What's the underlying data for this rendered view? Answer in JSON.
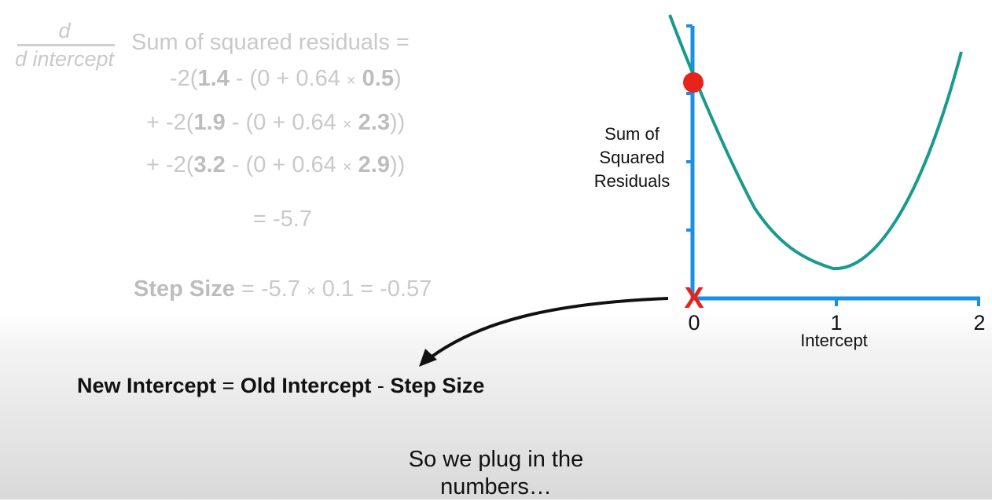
{
  "derivative": {
    "numerator": "d",
    "denominator": "d intercept",
    "label": "Sum of squared residuals ="
  },
  "terms": [
    {
      "prefix": "-2(",
      "observed": "1.4",
      "mid": " - (0 + 0.64",
      "times": "×",
      "x": "0.5",
      "suffix": ")"
    },
    {
      "prefix": "+ -2(",
      "observed": "1.9",
      "mid": " - (0 + 0.64",
      "times": "×",
      "x": "2.3",
      "suffix": "))"
    },
    {
      "prefix": "+ -2(",
      "observed": "3.2",
      "mid": " - (0 + 0.64",
      "times": "×",
      "x": "2.9",
      "suffix": "))"
    }
  ],
  "result": "= -5.7",
  "step_size": {
    "label": "Step Size",
    "expr_a": " = -5.7 ",
    "times": "×",
    "expr_b": " 0.1 = -0.57"
  },
  "update_rule": {
    "new": "New Intercept",
    "eq": " = ",
    "old": "Old Intercept",
    "minus": " - ",
    "step": "Step Size"
  },
  "narration": "So we plug in the numbers…",
  "graph": {
    "ylabel_lines": [
      "Sum of",
      "Squared",
      "Residuals"
    ],
    "xlabel": "Intercept",
    "x_ticks": [
      "0",
      "1",
      "2"
    ],
    "current_intercept": 0,
    "marker": "X",
    "colors": {
      "axis": "#1a8fe6",
      "curve": "#1a9a8c",
      "point": "#e8231a",
      "marker": "#e8231a",
      "arrow": "#111111"
    }
  }
}
